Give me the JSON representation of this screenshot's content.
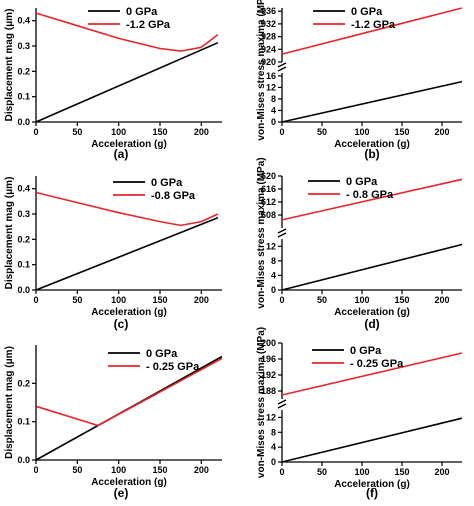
{
  "colors": {
    "zero": "#000000",
    "neg": "#e8252b",
    "axis": "#000000"
  },
  "chart_data": [
    {
      "panel": "(a)",
      "type": "line",
      "xlabel": "Acceleration (g)",
      "ylabel": "Displacement mag (μm)",
      "xlim": [
        0,
        225
      ],
      "ylim": [
        0,
        0.45
      ],
      "xticks": [
        "0",
        "50",
        "100",
        "150",
        "200"
      ],
      "yticks": [
        "0.0",
        "0.1",
        "0.2",
        "0.3",
        "0.4"
      ],
      "series": [
        {
          "name": "0 GPa",
          "color": "zero",
          "x": [
            0,
            220
          ],
          "y": [
            0.0,
            0.313
          ]
        },
        {
          "name": "-1.2 GPa",
          "color": "neg",
          "x": [
            0,
            50,
            100,
            150,
            175,
            200,
            220
          ],
          "y": [
            0.43,
            0.38,
            0.33,
            0.29,
            0.28,
            0.295,
            0.345
          ]
        }
      ]
    },
    {
      "panel": "(b)",
      "type": "line",
      "xlabel": "Acceleration (g)",
      "ylabel": "von-Mises stress maxima (MPa)",
      "xlim": [
        0,
        225
      ],
      "broken_axis": true,
      "upper": {
        "ylim": [
          920,
          937
        ],
        "yticks": [
          "920",
          "924",
          "928",
          "932",
          "936"
        ]
      },
      "lower": {
        "ylim": [
          0,
          17
        ],
        "yticks": [
          "0",
          "4",
          "8",
          "12",
          "16"
        ]
      },
      "xticks": [
        "0",
        "50",
        "100",
        "150",
        "200"
      ],
      "series": [
        {
          "name": "0 GPa",
          "color": "zero",
          "axis": "lower",
          "x": [
            0,
            225
          ],
          "y": [
            0.0,
            14.0
          ]
        },
        {
          "name": "-1.2 GPa",
          "color": "neg",
          "axis": "upper",
          "x": [
            0,
            225
          ],
          "y": [
            922.5,
            937.0
          ]
        }
      ]
    },
    {
      "panel": "(c)",
      "type": "line",
      "xlabel": "Acceleration (g)",
      "ylabel": "Displacement mag (μm)",
      "xlim": [
        0,
        225
      ],
      "ylim": [
        0,
        0.45
      ],
      "xticks": [
        "0",
        "50",
        "100",
        "150",
        "200"
      ],
      "yticks": [
        "0.0",
        "0.1",
        "0.2",
        "0.3",
        "0.4"
      ],
      "series": [
        {
          "name": "0 GPa",
          "color": "zero",
          "x": [
            0,
            220
          ],
          "y": [
            0.0,
            0.285
          ]
        },
        {
          "name": "-0.8 GPa",
          "color": "neg",
          "x": [
            0,
            50,
            100,
            150,
            175,
            200,
            220
          ],
          "y": [
            0.385,
            0.345,
            0.305,
            0.27,
            0.255,
            0.27,
            0.3
          ]
        }
      ]
    },
    {
      "panel": "(d)",
      "type": "line",
      "xlabel": "Acceleration (g)",
      "ylabel": "von-Mises stress maxima (MPa)",
      "xlim": [
        0,
        225
      ],
      "broken_axis": true,
      "upper": {
        "ylim": [
          604,
          620
        ],
        "yticks": [
          "608",
          "612",
          "616",
          "620"
        ]
      },
      "lower": {
        "ylim": [
          0,
          14
        ],
        "yticks": [
          "0",
          "4",
          "8",
          "12"
        ]
      },
      "xticks": [
        "0",
        "50",
        "100",
        "150",
        "200"
      ],
      "series": [
        {
          "name": "0 GPa",
          "color": "zero",
          "axis": "lower",
          "x": [
            0,
            225
          ],
          "y": [
            0.0,
            12.5
          ]
        },
        {
          "name": "- 0.8 GPa",
          "color": "neg",
          "axis": "upper",
          "x": [
            0,
            225
          ],
          "y": [
            606.5,
            619.0
          ]
        }
      ]
    },
    {
      "panel": "(e)",
      "type": "line",
      "xlabel": "Acceleration (g)",
      "ylabel": "Displacement mag (μm)",
      "xlim": [
        0,
        225
      ],
      "ylim": [
        0,
        0.3
      ],
      "xticks": [
        "0",
        "50",
        "100",
        "150",
        "200"
      ],
      "yticks": [
        "0.0",
        "0.1",
        "0.2"
      ],
      "series": [
        {
          "name": "0 GPa",
          "color": "zero",
          "x": [
            0,
            225
          ],
          "y": [
            0.0,
            0.27
          ]
        },
        {
          "name": "- 0.25 GPa",
          "color": "neg",
          "x": [
            0,
            75,
            225
          ],
          "y": [
            0.14,
            0.09,
            0.265
          ]
        }
      ]
    },
    {
      "panel": "(f)",
      "type": "line",
      "xlabel": "Acceleration (g)",
      "ylabel": "von-Mises stress maxima (MPa)",
      "xlim": [
        0,
        225
      ],
      "broken_axis": true,
      "upper": {
        "ylim": [
          186,
          200
        ],
        "yticks": [
          "188",
          "192",
          "196",
          "200"
        ]
      },
      "lower": {
        "ylim": [
          0,
          14
        ],
        "yticks": [
          "0",
          "4",
          "8",
          "12"
        ]
      },
      "xticks": [
        "0",
        "50",
        "100",
        "150",
        "200"
      ],
      "series": [
        {
          "name": "0 GPa",
          "color": "zero",
          "axis": "lower",
          "x": [
            0,
            225
          ],
          "y": [
            0.0,
            11.8
          ]
        },
        {
          "name": "- 0.25 GPa",
          "color": "neg",
          "axis": "upper",
          "x": [
            0,
            225
          ],
          "y": [
            187.0,
            197.5
          ]
        }
      ]
    }
  ]
}
